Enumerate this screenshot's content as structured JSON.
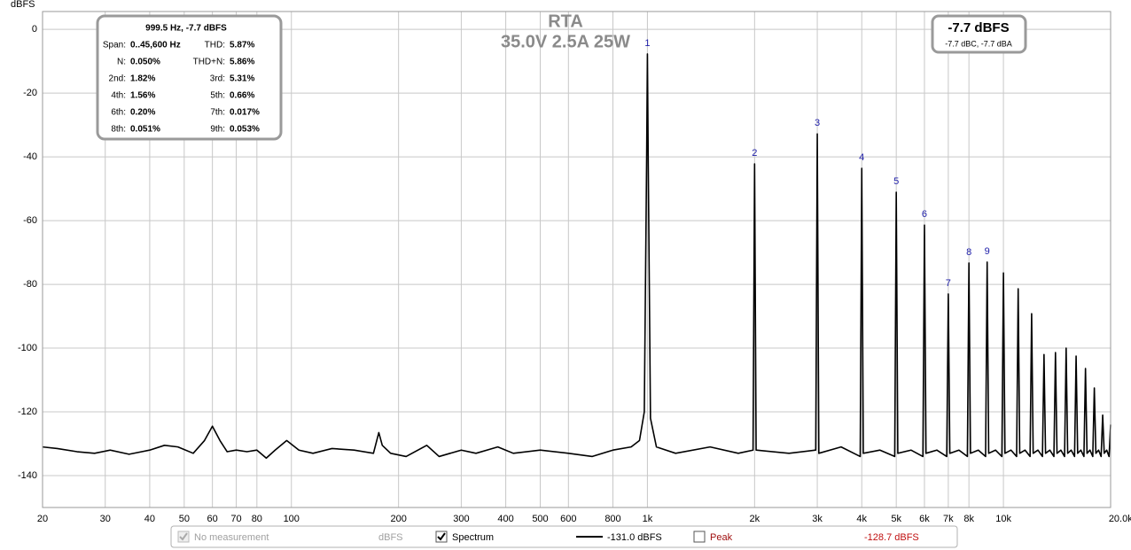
{
  "chart_data": {
    "type": "line",
    "title": "RTA",
    "subtitle": "35.0V 2.5A 25W",
    "y_label": "dBFS",
    "log_x": true,
    "grid": true,
    "xlim": [
      20,
      20000
    ],
    "ylim": [
      -150,
      5.6
    ],
    "xticks": [
      20,
      30,
      40,
      50,
      60,
      70,
      80,
      100,
      200,
      300,
      400,
      500,
      600,
      800,
      {
        "value": 1000,
        "label": "1k"
      },
      {
        "value": 2000,
        "label": "2k"
      },
      {
        "value": 3000,
        "label": "3k"
      },
      {
        "value": 4000,
        "label": "4k"
      },
      {
        "value": 5000,
        "label": "5k"
      },
      {
        "value": 6000,
        "label": "6k"
      },
      {
        "value": 7000,
        "label": "7k"
      },
      {
        "value": 8000,
        "label": "8k"
      },
      {
        "value": 10000,
        "label": "10k"
      },
      {
        "value": 20000,
        "label": "20.0kHz"
      }
    ],
    "yticks": [
      0,
      -20,
      -40,
      -60,
      -80,
      -100,
      -120,
      -140
    ],
    "x": [
      20,
      22,
      25,
      28,
      31,
      35,
      40,
      44,
      48,
      53,
      57,
      60,
      63,
      66,
      70,
      75,
      80,
      85,
      90,
      97,
      105,
      115,
      130,
      150,
      170,
      176,
      180,
      190,
      210,
      240,
      260,
      300,
      330,
      380,
      420,
      500,
      600,
      700,
      800,
      900,
      950,
      980,
      995,
      1000,
      1005,
      1020,
      1060,
      1200,
      1500,
      1800,
      1980,
      2000,
      2020,
      2500,
      2970,
      3000,
      3030,
      3500,
      3960,
      4000,
      4040,
      4500,
      4950,
      5000,
      5050,
      5500,
      5940,
      6000,
      6060,
      6500,
      6930,
      7000,
      7070,
      7500,
      7920,
      8000,
      8080,
      8500,
      8910,
      9000,
      9090,
      9500,
      9900,
      10000,
      10100,
      10500,
      10890,
      11000,
      11110,
      11500,
      11880,
      12000,
      12120,
      12500,
      12870,
      13000,
      13130,
      13500,
      13860,
      14000,
      14140,
      14500,
      14850,
      15000,
      15150,
      15500,
      15840,
      16000,
      16160,
      16500,
      16830,
      17000,
      17170,
      17500,
      17820,
      18000,
      18180,
      18500,
      18810,
      19000,
      19190,
      19500,
      19800,
      20000
    ],
    "series": [
      {
        "color": "#000000",
        "values": [
          -131,
          -131.5,
          -132.5,
          -133,
          -132,
          -133.3,
          -132,
          -130.5,
          -131,
          -133,
          -129,
          -124.5,
          -129,
          -132.5,
          -132,
          -132.5,
          -132,
          -134.5,
          -132,
          -129,
          -132,
          -133,
          -131.5,
          -132,
          -133,
          -126.5,
          -130.5,
          -133,
          -134,
          -130.5,
          -134,
          -132,
          -133,
          -131,
          -133,
          -132,
          -133,
          -134,
          -132,
          -131,
          -129,
          -120,
          -40,
          -7.7,
          -40,
          -122,
          -131,
          -133,
          -131,
          -133,
          -132,
          -42.2,
          -132,
          -133,
          -132,
          -32.8,
          -133,
          -131,
          -134,
          -43.6,
          -133,
          -132,
          -134,
          -51.1,
          -133,
          -132,
          -134,
          -61.4,
          -133,
          -132,
          -134,
          -83,
          -133,
          -132,
          -134,
          -73.3,
          -133,
          -132,
          -134,
          -73,
          -133,
          -132,
          -134,
          -76.4,
          -133,
          -132,
          -134,
          -81.4,
          -133,
          -132,
          -134,
          -89.2,
          -133,
          -132,
          -134,
          -102,
          -133,
          -132,
          -134,
          -101.4,
          -133,
          -132,
          -134,
          -100,
          -133,
          -132,
          -134,
          -102.5,
          -133,
          -132,
          -134,
          -106.4,
          -133,
          -132,
          -134,
          -112.5,
          -133,
          -132,
          -134,
          -121,
          -133,
          -132,
          -134,
          -124
        ]
      }
    ],
    "annotation_color": "#1c1ca8",
    "annotations": [
      {
        "text": "1",
        "x": 1000,
        "y": -7.7
      },
      {
        "text": "2",
        "x": 2000,
        "y": -42.2
      },
      {
        "text": "3",
        "x": 3000,
        "y": -32.8
      },
      {
        "text": "4",
        "x": 4000,
        "y": -43.6
      },
      {
        "text": "5",
        "x": 5000,
        "y": -51.1
      },
      {
        "text": "6",
        "x": 6000,
        "y": -61.4
      },
      {
        "text": "7",
        "x": 7000,
        "y": -83
      },
      {
        "text": "8",
        "x": 8000,
        "y": -73.3
      },
      {
        "text": "9",
        "x": 9000,
        "y": -73
      }
    ]
  },
  "info_box": {
    "title": "999.5 Hz, -7.7 dBFS",
    "rows": [
      [
        [
          "Span:",
          "0..45,600 Hz"
        ],
        [
          "THD:",
          "5.87%"
        ]
      ],
      [
        [
          "N:",
          "0.050%"
        ],
        [
          "THD+N:",
          "5.86%"
        ]
      ],
      [
        [
          "2nd:",
          "1.82%"
        ],
        [
          "3rd:",
          "5.31%"
        ]
      ],
      [
        [
          "4th:",
          "1.56%"
        ],
        [
          "5th:",
          "0.66%"
        ]
      ],
      [
        [
          "6th:",
          "0.20%"
        ],
        [
          "7th:",
          "0.017%"
        ]
      ],
      [
        [
          "8th:",
          "0.051%"
        ],
        [
          "9th:",
          "0.053%"
        ]
      ]
    ]
  },
  "level_box": {
    "level": "-7.7 dBFS",
    "weighted": "-7.7 dBC, -7.7 dBA"
  },
  "controls": {
    "measurement": "No measurement",
    "measurement_unit": "dBFS",
    "spectrum": "Spectrum",
    "spectrum_level": "-131.0 dBFS",
    "peak": "Peak",
    "peak_level": "-128.7 dBFS"
  }
}
